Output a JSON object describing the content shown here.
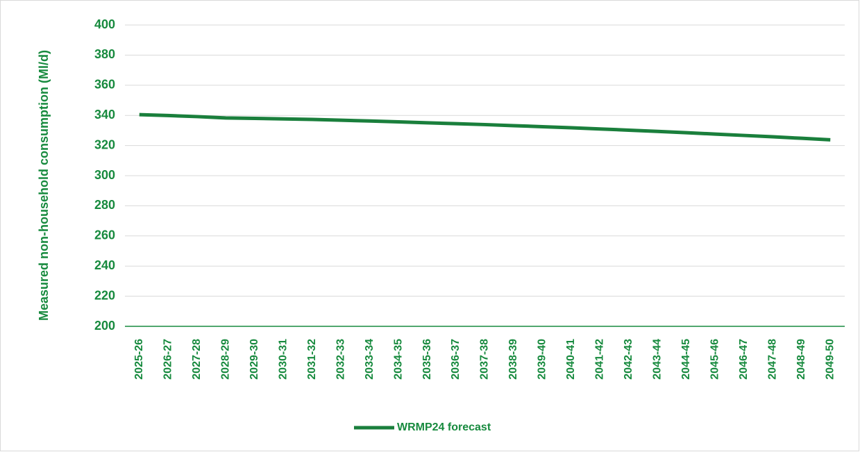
{
  "chart_data": {
    "type": "line",
    "y_label": "Measured non-household consumption (Ml/d)",
    "categories": [
      "2025-26",
      "2026-27",
      "2027-28",
      "2028-29",
      "2029-30",
      "2030-31",
      "2031-32",
      "2032-33",
      "2033-34",
      "2034-35",
      "2035-36",
      "2036-37",
      "2037-38",
      "2038-39",
      "2039-40",
      "2040-41",
      "2041-42",
      "2042-43",
      "2043-44",
      "2044-45",
      "2045-46",
      "2046-47",
      "2047-48",
      "2048-49",
      "2049-50"
    ],
    "series": [
      {
        "name": "WRMP24 forecast",
        "color": "#1a7f3c",
        "values": [
          340.5,
          339.9,
          339.2,
          338.3,
          338.0,
          337.7,
          337.3,
          336.8,
          336.3,
          335.7,
          335.1,
          334.5,
          333.9,
          333.2,
          332.5,
          331.8,
          331.0,
          330.2,
          329.4,
          328.5,
          327.6,
          326.7,
          325.8,
          324.8,
          323.8
        ]
      }
    ],
    "ylim": [
      200,
      400
    ],
    "yticks": [
      200,
      220,
      240,
      260,
      280,
      300,
      320,
      340,
      360,
      380,
      400
    ],
    "grid": true,
    "legend": "bottom"
  }
}
